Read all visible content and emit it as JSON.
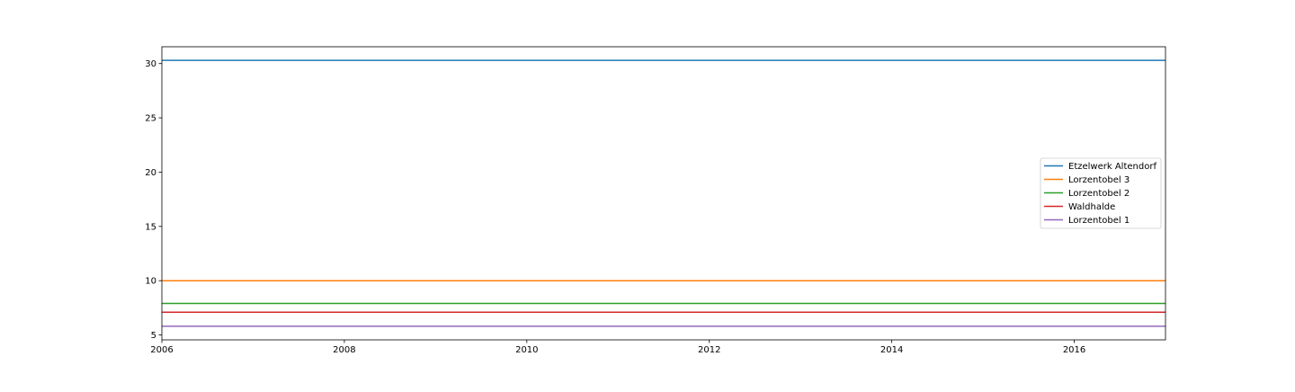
{
  "chart_data": {
    "type": "line",
    "title": "",
    "xlabel": "",
    "ylabel": "",
    "xlim": [
      2006,
      2017
    ],
    "ylim": [
      4.55,
      31.55
    ],
    "xticks": [
      2006,
      2008,
      2010,
      2012,
      2014,
      2016
    ],
    "xtick_labels": [
      "2006",
      "2008",
      "2010",
      "2012",
      "2014",
      "2016"
    ],
    "yticks": [
      5,
      10,
      15,
      20,
      25,
      30
    ],
    "ytick_labels": [
      "5",
      "10",
      "15",
      "20",
      "25",
      "30"
    ],
    "grid": false,
    "legend_position": "center-right",
    "x": [
      2006,
      2017
    ],
    "series": [
      {
        "name": "Etzelwerk Altendorf",
        "color": "#1f77b4",
        "values": [
          30.3,
          30.3
        ]
      },
      {
        "name": "Lorzentobel 3",
        "color": "#ff7f0e",
        "values": [
          10.0,
          10.0
        ]
      },
      {
        "name": "Lorzentobel 2",
        "color": "#2ca02c",
        "values": [
          7.9,
          7.9
        ]
      },
      {
        "name": "Waldhalde",
        "color": "#d62728",
        "values": [
          7.1,
          7.1
        ]
      },
      {
        "name": "Lorzentobel 1",
        "color": "#9467bd",
        "values": [
          5.8,
          5.8
        ]
      }
    ]
  }
}
